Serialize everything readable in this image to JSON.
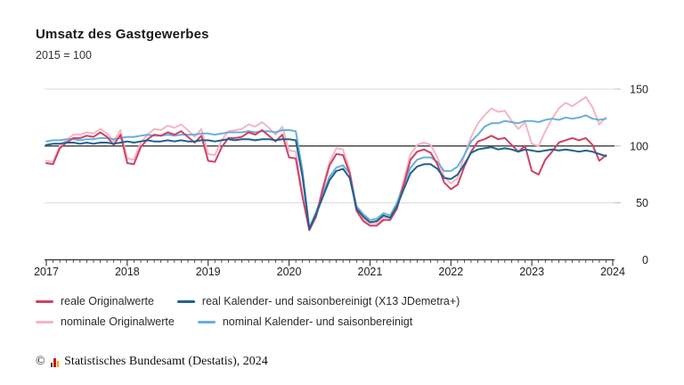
{
  "header": {
    "title": "Umsatz des Gastgewerbes",
    "subtitle": "2015 = 100"
  },
  "chart_data": {
    "type": "line",
    "frequency": "monthly",
    "x_start": "2017-01",
    "x_end": "2023-12",
    "xticks": [
      "2017",
      "2018",
      "2019",
      "2020",
      "2021",
      "2022",
      "2023",
      "2024"
    ],
    "yticks": [
      0,
      50,
      100,
      150
    ],
    "ylim": [
      0,
      150
    ],
    "baseline_value": 100,
    "grid": "horizontal gridlines at 50 and 150, dark reference line at 100",
    "legend_position": "bottom",
    "colors": {
      "grid": "#d9d9d9",
      "baseline": "#3a3a3a",
      "axis": "#333333",
      "tick_label": "#222222"
    },
    "series": [
      {
        "name": "reale Originalwerte",
        "color": "#ce4264",
        "z": 3,
        "values": [
          85,
          84,
          98,
          103,
          107,
          107,
          109,
          108,
          112,
          108,
          101,
          110,
          85,
          84,
          99,
          106,
          110,
          109,
          112,
          110,
          113,
          108,
          103,
          109,
          87,
          86,
          99,
          107,
          107,
          108,
          112,
          110,
          114,
          109,
          104,
          110,
          90,
          89,
          55,
          26,
          38,
          62,
          83,
          93,
          92,
          76,
          43,
          34,
          30,
          30,
          35,
          35,
          45,
          66,
          88,
          95,
          97,
          94,
          84,
          68,
          62,
          66,
          82,
          95,
          104,
          106,
          109,
          106,
          107,
          101,
          95,
          100,
          78,
          75,
          88,
          95,
          103,
          105,
          107,
          105,
          107,
          101,
          87,
          92
        ]
      },
      {
        "name": "real Kalender- und saisonbereinigt (X13 JDemetra+)",
        "color": "#20618d",
        "z": 4,
        "values": [
          101,
          102,
          102,
          103,
          103,
          102,
          103,
          102,
          103,
          103,
          102,
          103,
          104,
          103,
          104,
          105,
          104,
          104,
          105,
          104,
          105,
          104,
          104,
          105,
          105,
          104,
          105,
          106,
          105,
          106,
          106,
          105,
          106,
          106,
          105,
          106,
          106,
          105,
          73,
          27,
          40,
          55,
          70,
          78,
          80,
          72,
          45,
          38,
          33,
          34,
          39,
          37,
          47,
          62,
          76,
          82,
          84,
          84,
          80,
          72,
          71,
          75,
          84,
          94,
          97,
          98,
          99,
          97,
          98,
          97,
          95,
          97,
          96,
          95,
          96,
          97,
          96,
          97,
          96,
          95,
          96,
          95,
          93,
          91
        ]
      },
      {
        "name": "nominale Originalwerte",
        "color": "#f3b6c3",
        "z": 1,
        "values": [
          87,
          86,
          100,
          105,
          110,
          110,
          112,
          111,
          115,
          111,
          104,
          114,
          89,
          88,
          103,
          110,
          115,
          114,
          118,
          116,
          119,
          114,
          108,
          115,
          93,
          92,
          105,
          113,
          114,
          115,
          119,
          117,
          121,
          116,
          110,
          117,
          96,
          95,
          57,
          27,
          39,
          64,
          86,
          98,
          97,
          79,
          45,
          36,
          32,
          32,
          37,
          37,
          48,
          70,
          93,
          101,
          103,
          101,
          90,
          73,
          67,
          72,
          92,
          108,
          120,
          127,
          133,
          130,
          131,
          122,
          115,
          121,
          102,
          100,
          113,
          124,
          133,
          138,
          135,
          139,
          143,
          134,
          119,
          125
        ]
      },
      {
        "name": "nominal Kalender- und saisonbereinigt",
        "color": "#69aede",
        "z": 2,
        "values": [
          104,
          105,
          105,
          106,
          106,
          105,
          106,
          106,
          107,
          107,
          106,
          107,
          108,
          108,
          109,
          110,
          109,
          109,
          110,
          109,
          110,
          110,
          110,
          111,
          111,
          110,
          111,
          112,
          112,
          112,
          113,
          112,
          113,
          113,
          112,
          114,
          114,
          113,
          78,
          28,
          42,
          58,
          73,
          81,
          83,
          76,
          47,
          40,
          35,
          36,
          41,
          39,
          50,
          66,
          81,
          88,
          90,
          90,
          86,
          78,
          78,
          82,
          92,
          104,
          110,
          117,
          120,
          120,
          122,
          121,
          120,
          122,
          122,
          121,
          123,
          124,
          123,
          125,
          124,
          125,
          127,
          124,
          123,
          124
        ]
      }
    ]
  },
  "legend": {
    "rows": [
      [
        0,
        1
      ],
      [
        2,
        3
      ]
    ]
  },
  "footer": {
    "copyright": "©",
    "logo": "destatis-bars-icon",
    "source": "Statistisches Bundesamt (Destatis), 2024",
    "logo_colors": [
      "#4a4a4a",
      "#cc1719",
      "#f2a900"
    ]
  }
}
